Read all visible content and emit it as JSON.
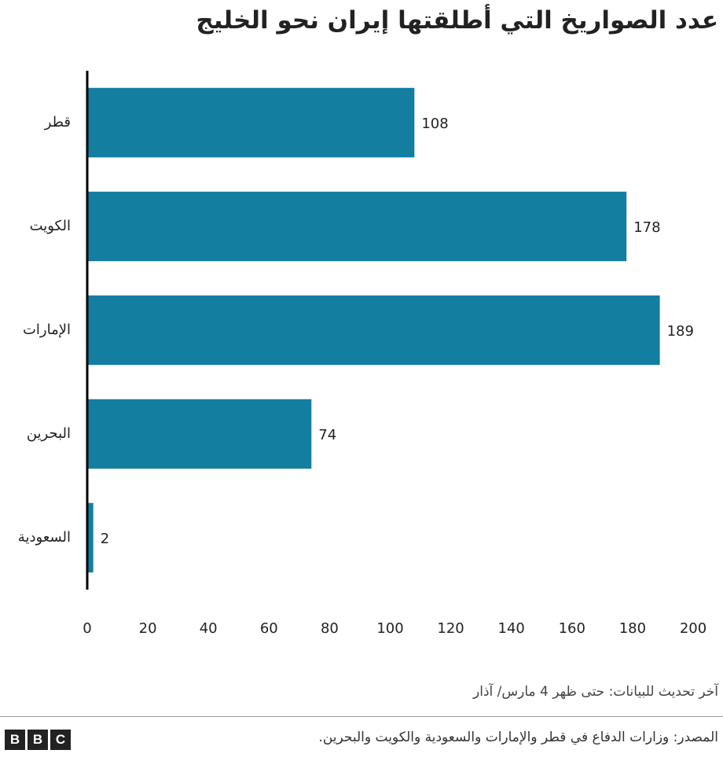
{
  "chart_data": {
    "type": "bar",
    "orientation": "horizontal",
    "title": "عدد الصواريخ التي أطلقتها إيران نحو الخليج",
    "categories": [
      "قطر",
      "الكويت",
      "الإمارات",
      "البحرين",
      "السعودية"
    ],
    "values": [
      108,
      178,
      189,
      74,
      2
    ],
    "color": "#137ea0",
    "xlim": [
      0,
      200
    ],
    "xticks": [
      0,
      20,
      40,
      60,
      80,
      100,
      120,
      140,
      160,
      180,
      200
    ],
    "grid": false,
    "note": "آخر تحديث للبيانات: حتى ظهر 4 مارس/ آذار",
    "source": "المصدر: وزارات الدفاع في قطر والإمارات والسعودية والكويت والبحرين.",
    "logo": [
      "B",
      "B",
      "C"
    ]
  }
}
